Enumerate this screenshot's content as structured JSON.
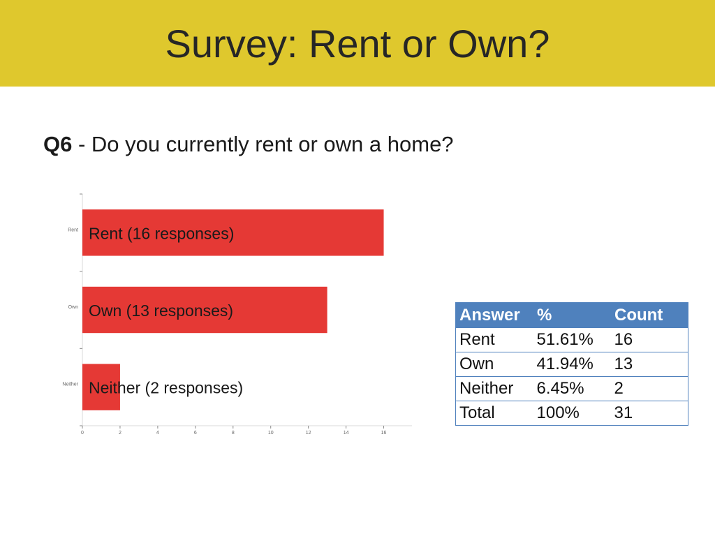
{
  "slide": {
    "title": "Survey: Rent or Own?",
    "question_label": "Q6",
    "question_text": " - Do you currently rent or own a home?"
  },
  "chart_data": {
    "type": "bar",
    "orientation": "horizontal",
    "categories": [
      "Rent",
      "Own",
      "Neither"
    ],
    "values": [
      16,
      13,
      2
    ],
    "bar_labels": [
      "Rent (16 responses)",
      "Own (13 responses)",
      "Neither  (2 responses)"
    ],
    "xticks": [
      0,
      2,
      4,
      6,
      8,
      10,
      12,
      14,
      16
    ],
    "xlim": [
      0,
      17.5
    ],
    "bar_color": "#e53935",
    "grid": false,
    "title": "",
    "xlabel": "",
    "ylabel": ""
  },
  "table": {
    "headers": [
      "Answer",
      "%",
      "Count"
    ],
    "rows": [
      [
        "Rent",
        "51.61%",
        "16"
      ],
      [
        "Own",
        "41.94%",
        "13"
      ],
      [
        "Neither",
        "6.45%",
        "2"
      ],
      [
        "Total",
        "100%",
        "31"
      ]
    ],
    "header_color": "#4f81bd"
  }
}
